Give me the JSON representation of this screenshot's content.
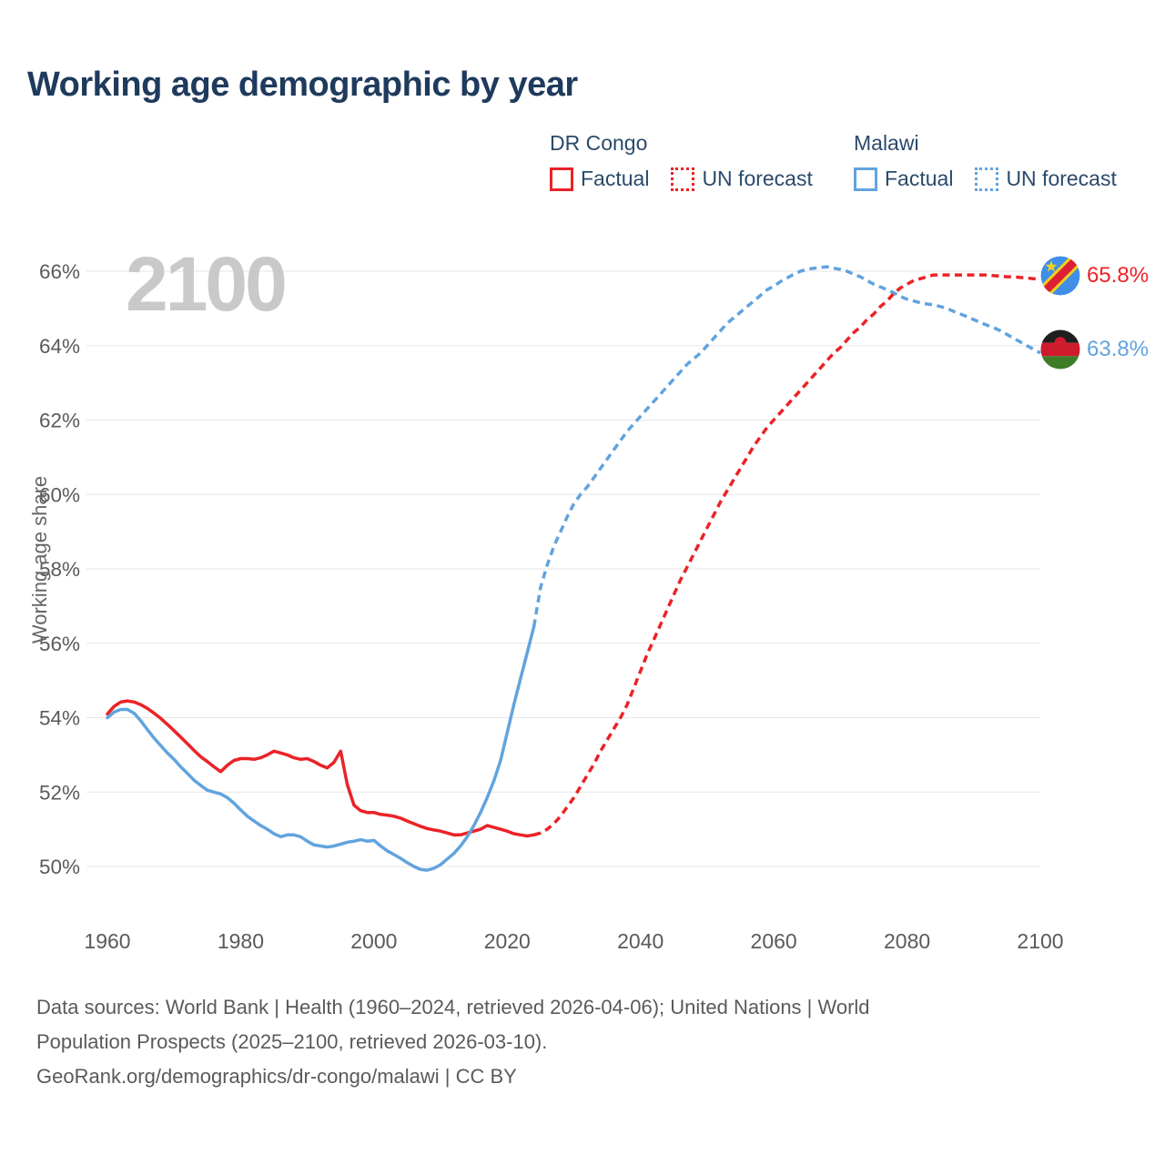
{
  "title": "Working age demographic by year",
  "watermark": "2100",
  "y_axis_title": "Working age share",
  "legend": {
    "groups": [
      {
        "name": "DR Congo",
        "color": "#eb2227",
        "items": [
          {
            "label": "Factual",
            "style": "solid"
          },
          {
            "label": "UN forecast",
            "style": "dotted"
          }
        ]
      },
      {
        "name": "Malawi",
        "color": "#62a3de",
        "items": [
          {
            "label": "Factual",
            "style": "solid"
          },
          {
            "label": "UN forecast",
            "style": "dotted"
          }
        ]
      }
    ]
  },
  "end_labels": [
    {
      "country": "DR Congo",
      "value": "65.8%",
      "color": "#eb2227",
      "flag_icon": "dr-congo-flag-icon"
    },
    {
      "country": "Malawi",
      "value": "63.8%",
      "color": "#62a3de",
      "flag_icon": "malawi-flag-icon"
    }
  ],
  "footer": {
    "lines": [
      "Data sources: World Bank | Health (1960–2024, retrieved 2026-04-06); United Nations | World",
      "Population Prospects (2025–2100, retrieved 2026-03-10).",
      "GeoRank.org/demographics/dr-congo/malawi | CC BY"
    ]
  },
  "chart_data": {
    "type": "line",
    "title": "Working age demographic by year",
    "xlabel": "",
    "ylabel": "Working age share",
    "x_ticks": [
      1960,
      1980,
      2000,
      2020,
      2040,
      2060,
      2080,
      2100
    ],
    "y_ticks": [
      66,
      64,
      62,
      60,
      58,
      56,
      54,
      52,
      50
    ],
    "xlim": [
      1960,
      2100
    ],
    "ylim": [
      49.5,
      66.5
    ],
    "grid": "horizontal",
    "legend_position": "top-right",
    "end_values": {
      "dr_congo": 65.8,
      "malawi": 63.8
    },
    "series": [
      {
        "name": "DR Congo Factual",
        "color": "#eb2227",
        "style": "solid",
        "start_year": 1960,
        "values": [
          54.1,
          54.3,
          54.42,
          54.45,
          54.42,
          54.35,
          54.25,
          54.12,
          53.98,
          53.82,
          53.65,
          53.48,
          53.3,
          53.12,
          52.95,
          52.82,
          52.68,
          52.55,
          52.72,
          52.85,
          52.9,
          52.9,
          52.88,
          52.92,
          53.0,
          53.1,
          53.05,
          53.0,
          52.92,
          52.88,
          52.9,
          52.82,
          52.72,
          52.65,
          52.8,
          53.1,
          52.2,
          51.65,
          51.5,
          51.45,
          51.45,
          51.4,
          51.38,
          51.35,
          51.3,
          51.22,
          51.15,
          51.08,
          51.02,
          50.98,
          50.95,
          50.9,
          50.85,
          50.85,
          50.9,
          50.95,
          51.0,
          51.1,
          51.05,
          51.0,
          50.95,
          50.88,
          50.85,
          50.82,
          50.85
        ]
      },
      {
        "name": "DR Congo UN forecast",
        "color": "#eb2227",
        "style": "dashed",
        "start_year": 2024,
        "values": [
          50.85,
          50.9,
          51.0,
          51.15,
          51.35,
          51.6,
          51.85,
          52.15,
          52.45,
          52.75,
          53.1,
          53.4,
          53.7,
          54.0,
          54.35,
          54.8,
          55.25,
          55.7,
          56.1,
          56.5,
          56.9,
          57.3,
          57.7,
          58.05,
          58.4,
          58.75,
          59.1,
          59.45,
          59.8,
          60.1,
          60.4,
          60.7,
          61.0,
          61.3,
          61.55,
          61.8,
          62.0,
          62.2,
          62.4,
          62.6,
          62.8,
          63.0,
          63.2,
          63.4,
          63.6,
          63.8,
          63.95,
          64.15,
          64.35,
          64.5,
          64.7,
          64.85,
          65.05,
          65.2,
          65.4,
          65.55,
          65.65,
          65.75,
          65.8,
          65.85,
          65.9,
          65.9,
          65.9,
          65.9,
          65.9,
          65.9,
          65.9,
          65.9,
          65.9,
          65.88,
          65.87,
          65.85,
          65.85,
          65.83,
          65.82,
          65.8,
          65.8
        ]
      },
      {
        "name": "Malawi Factual",
        "color": "#62a3de",
        "style": "solid",
        "start_year": 1960,
        "values": [
          54.0,
          54.15,
          54.22,
          54.22,
          54.12,
          53.92,
          53.68,
          53.45,
          53.25,
          53.05,
          52.88,
          52.68,
          52.5,
          52.32,
          52.18,
          52.05,
          52.0,
          51.95,
          51.85,
          51.7,
          51.52,
          51.35,
          51.22,
          51.1,
          51.0,
          50.88,
          50.8,
          50.85,
          50.85,
          50.8,
          50.68,
          50.58,
          50.55,
          50.52,
          50.55,
          50.6,
          50.65,
          50.68,
          50.72,
          50.68,
          50.7,
          50.55,
          50.42,
          50.32,
          50.22,
          50.1,
          50.0,
          49.92,
          49.9,
          49.95,
          50.05,
          50.2,
          50.35,
          50.55,
          50.8,
          51.1,
          51.45,
          51.85,
          52.3,
          52.85,
          53.6,
          54.35,
          55.05,
          55.75,
          56.45
        ]
      },
      {
        "name": "Malawi UN forecast",
        "color": "#62a3de",
        "style": "dashed",
        "start_year": 2024,
        "values": [
          56.45,
          57.5,
          58.1,
          58.6,
          59.0,
          59.4,
          59.75,
          60.0,
          60.2,
          60.45,
          60.7,
          60.95,
          61.2,
          61.45,
          61.7,
          61.9,
          62.1,
          62.3,
          62.5,
          62.7,
          62.9,
          63.1,
          63.3,
          63.5,
          63.65,
          63.8,
          64.0,
          64.2,
          64.4,
          64.6,
          64.75,
          64.9,
          65.05,
          65.2,
          65.35,
          65.5,
          65.6,
          65.72,
          65.82,
          65.92,
          66.0,
          66.05,
          66.08,
          66.1,
          66.12,
          66.08,
          66.05,
          66.0,
          65.92,
          65.85,
          65.75,
          65.65,
          65.58,
          65.5,
          65.42,
          65.32,
          65.25,
          65.2,
          65.15,
          65.12,
          65.1,
          65.05,
          65.0,
          64.92,
          64.85,
          64.78,
          64.7,
          64.62,
          64.55,
          64.48,
          64.4,
          64.3,
          64.2,
          64.1,
          64.0,
          63.9,
          63.8
        ]
      }
    ]
  }
}
